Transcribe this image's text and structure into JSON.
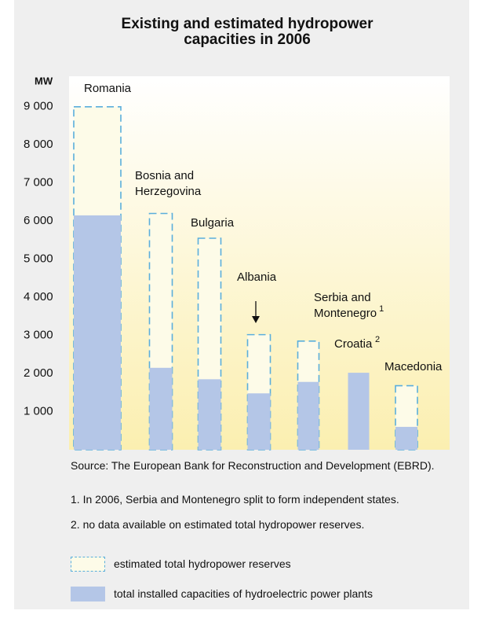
{
  "chart_data": {
    "type": "bar",
    "title": [
      "Existing and estimated hydropower",
      "capacities in 2006"
    ],
    "y_label": "MW",
    "categories": [
      "Romania",
      "Bosnia and Herzegovina",
      "Bulgaria",
      "Albania",
      "Serbia and Montenegro",
      "Croatia",
      "Macedonia"
    ],
    "category_notes": [
      null,
      null,
      null,
      null,
      "1",
      "2",
      null
    ],
    "series": [
      {
        "name": "estimated total hydropower reserves",
        "color": "#5aaedc",
        "style": "dashed",
        "values": [
          9000,
          6200,
          5550,
          3020,
          2850,
          null,
          1680
        ]
      },
      {
        "name": "total installed capacities of hydroelectric power plants",
        "color": "#b4c6e7",
        "style": "solid",
        "values": [
          6150,
          2150,
          1850,
          1480,
          1780,
          2020,
          600
        ]
      }
    ],
    "ylim": [
      0,
      9800
    ],
    "yticks": [
      {
        "value": 1000,
        "label": "1 000"
      },
      {
        "value": 2000,
        "label": "2 000"
      },
      {
        "value": 3000,
        "label": "3 000"
      },
      {
        "value": 4000,
        "label": "4 000"
      },
      {
        "value": 5000,
        "label": "5 000"
      },
      {
        "value": 6000,
        "label": "6 000"
      },
      {
        "value": 7000,
        "label": "7 000"
      },
      {
        "value": 8000,
        "label": "8 000"
      },
      {
        "value": 9000,
        "label": "9 000"
      }
    ],
    "grid": false,
    "source": "Source: The European Bank for Reconstruction and Development (EBRD).",
    "notes": [
      "1. In 2006, Serbia and Montenegro split to form independent states.",
      "2. no data available on estimated total hydropower reserves."
    ]
  }
}
